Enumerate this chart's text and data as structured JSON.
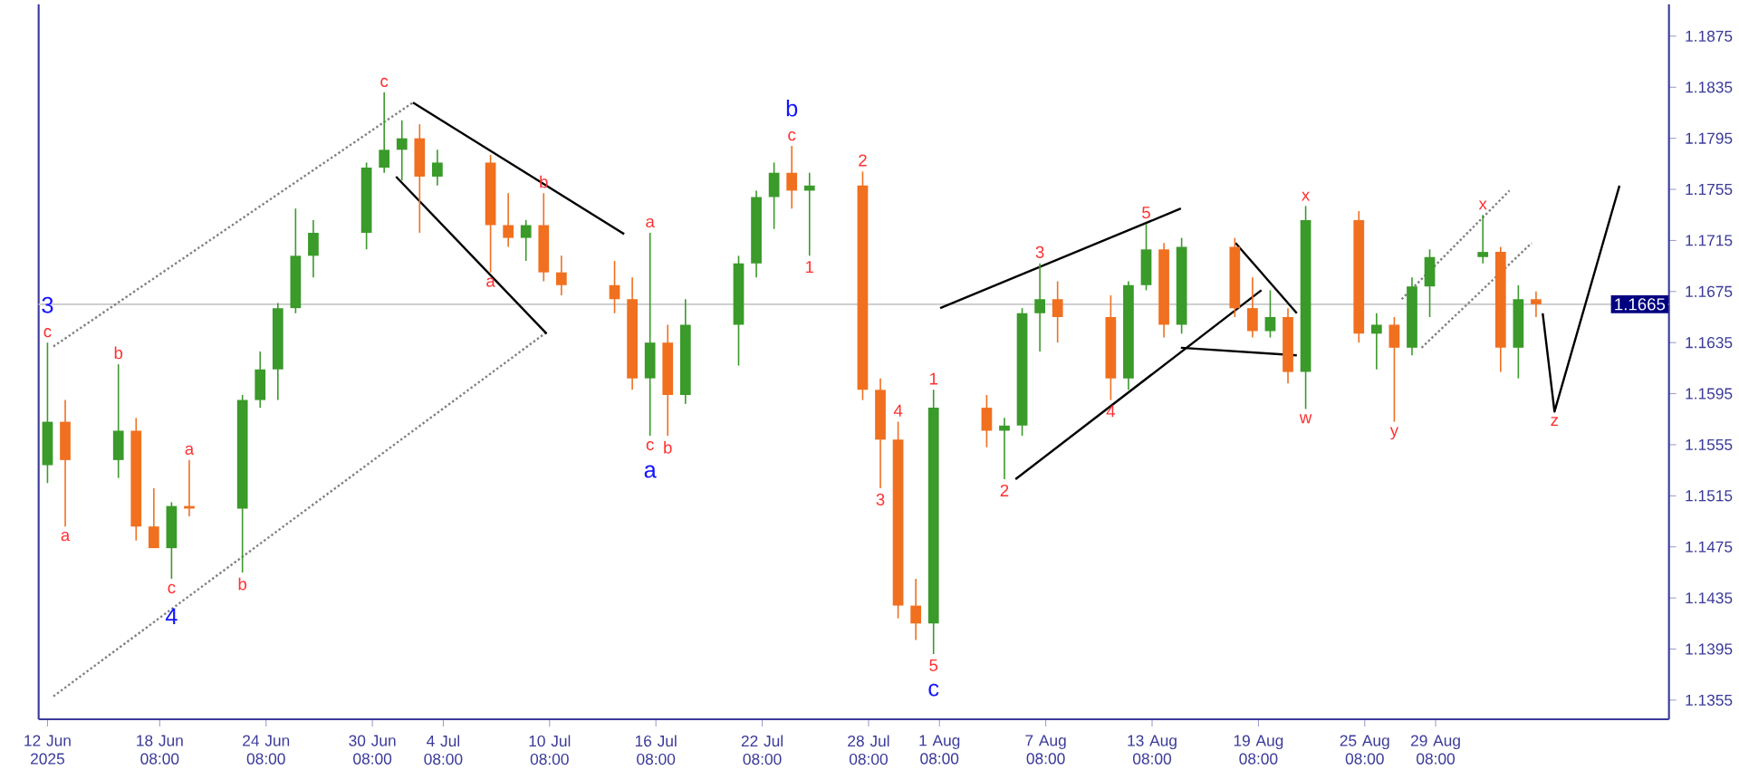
{
  "chart_data": {
    "type": "candlestick",
    "x": [
      "2025-06-12",
      "2025-06-13",
      "2025-06-16",
      "2025-06-17",
      "2025-06-18",
      "2025-06-19",
      "2025-06-20",
      "2025-06-23",
      "2025-06-24",
      "2025-06-25",
      "2025-06-26",
      "2025-06-27",
      "2025-06-30",
      "2025-07-01",
      "2025-07-02",
      "2025-07-03",
      "2025-07-04",
      "2025-07-07",
      "2025-07-08",
      "2025-07-09",
      "2025-07-10",
      "2025-07-11",
      "2025-07-14",
      "2025-07-15",
      "2025-07-16",
      "2025-07-17",
      "2025-07-18",
      "2025-07-21",
      "2025-07-22",
      "2025-07-23",
      "2025-07-24",
      "2025-07-25",
      "2025-07-28",
      "2025-07-29",
      "2025-07-30",
      "2025-07-31",
      "2025-08-01",
      "2025-08-04",
      "2025-08-05",
      "2025-08-06",
      "2025-08-07",
      "2025-08-08",
      "2025-08-11",
      "2025-08-12",
      "2025-08-13",
      "2025-08-14",
      "2025-08-15",
      "2025-08-18",
      "2025-08-19",
      "2025-08-20",
      "2025-08-21",
      "2025-08-22",
      "2025-08-25",
      "2025-08-26",
      "2025-08-27",
      "2025-08-28",
      "2025-08-29",
      "2025-09-01",
      "2025-09-02",
      "2025-09-03",
      "2025-09-04"
    ],
    "ohlc": [
      [
        1.1539,
        1.1635,
        1.1525,
        1.1573
      ],
      [
        1.1573,
        1.159,
        1.1491,
        1.1543
      ],
      [
        1.1543,
        1.1618,
        1.1529,
        1.1566
      ],
      [
        1.1566,
        1.1576,
        1.148,
        1.1491
      ],
      [
        1.1491,
        1.1521,
        1.1474,
        1.1474
      ],
      [
        1.1474,
        1.151,
        1.145,
        1.1507
      ],
      [
        1.1507,
        1.1543,
        1.1499,
        1.1505
      ],
      [
        1.1505,
        1.1594,
        1.1455,
        1.159
      ],
      [
        1.159,
        1.1628,
        1.1584,
        1.1614
      ],
      [
        1.1614,
        1.1666,
        1.159,
        1.1662
      ],
      [
        1.1662,
        1.174,
        1.1658,
        1.1703
      ],
      [
        1.1703,
        1.1731,
        1.1686,
        1.1721
      ],
      [
        1.1721,
        1.1776,
        1.1708,
        1.1772
      ],
      [
        1.1772,
        1.1831,
        1.1768,
        1.1786
      ],
      [
        1.1786,
        1.1809,
        1.1762,
        1.1795
      ],
      [
        1.1795,
        1.1806,
        1.1721,
        1.1765
      ],
      [
        1.1765,
        1.1786,
        1.1758,
        1.1776
      ],
      [
        1.1776,
        1.1782,
        1.169,
        1.1727
      ],
      [
        1.1727,
        1.1752,
        1.171,
        1.1717
      ],
      [
        1.1717,
        1.1731,
        1.1699,
        1.1727
      ],
      [
        1.1727,
        1.1752,
        1.1683,
        1.169
      ],
      [
        1.169,
        1.1703,
        1.1672,
        1.168
      ],
      [
        1.168,
        1.1699,
        1.1658,
        1.1669
      ],
      [
        1.1669,
        1.1686,
        1.1598,
        1.1607
      ],
      [
        1.1607,
        1.1721,
        1.1562,
        1.1635
      ],
      [
        1.1635,
        1.1649,
        1.1562,
        1.1594
      ],
      [
        1.1594,
        1.1669,
        1.1587,
        1.1649
      ],
      [
        1.1649,
        1.1703,
        1.1617,
        1.1697
      ],
      [
        1.1697,
        1.1754,
        1.1686,
        1.1749
      ],
      [
        1.1749,
        1.1776,
        1.1724,
        1.1768
      ],
      [
        1.1768,
        1.1789,
        1.174,
        1.1754
      ],
      [
        1.1754,
        1.1768,
        1.1703,
        1.1758
      ],
      [
        1.1758,
        1.1769,
        1.159,
        1.1598
      ],
      [
        1.1598,
        1.1607,
        1.1521,
        1.1559
      ],
      [
        1.1559,
        1.1573,
        1.1419,
        1.1429
      ],
      [
        1.1429,
        1.145,
        1.1402,
        1.1415
      ],
      [
        1.1415,
        1.1598,
        1.1391,
        1.1584
      ],
      [
        1.1584,
        1.1594,
        1.1553,
        1.1566
      ],
      [
        1.1566,
        1.1576,
        1.1528,
        1.157
      ],
      [
        1.157,
        1.1662,
        1.1562,
        1.1658
      ],
      [
        1.1658,
        1.1697,
        1.1628,
        1.1669
      ],
      [
        1.1669,
        1.1683,
        1.1635,
        1.1655
      ],
      [
        1.1655,
        1.1672,
        1.159,
        1.1607
      ],
      [
        1.1607,
        1.1683,
        1.1598,
        1.168
      ],
      [
        1.168,
        1.1728,
        1.1676,
        1.1708
      ],
      [
        1.1708,
        1.1713,
        1.1639,
        1.1649
      ],
      [
        1.1649,
        1.1717,
        1.1642,
        1.171
      ],
      [
        1.171,
        1.1717,
        1.1655,
        1.1662
      ],
      [
        1.1662,
        1.1686,
        1.1639,
        1.1644
      ],
      [
        1.1644,
        1.1676,
        1.1639,
        1.1655
      ],
      [
        1.1655,
        1.1662,
        1.1603,
        1.1612
      ],
      [
        1.1612,
        1.1742,
        1.1583,
        1.1731
      ],
      [
        1.1731,
        1.1738,
        1.1635,
        1.1642
      ],
      [
        1.1642,
        1.1658,
        1.1614,
        1.1649
      ],
      [
        1.1649,
        1.1655,
        1.1573,
        1.1631
      ],
      [
        1.1631,
        1.1686,
        1.1625,
        1.1679
      ],
      [
        1.1679,
        1.1708,
        1.1655,
        1.1702
      ],
      [
        1.1702,
        1.1735,
        1.1697,
        1.1706
      ],
      [
        1.1706,
        1.171,
        1.1612,
        1.1631
      ],
      [
        1.1631,
        1.168,
        1.1607,
        1.1669
      ],
      [
        1.1669,
        1.1675,
        1.1655,
        1.1665
      ]
    ],
    "colors": [
      "#3a9a2a",
      "#f07020",
      "#3a9a2a",
      "#f07020",
      "#f07020",
      "#3a9a2a",
      "#f07020",
      "#3a9a2a",
      "#3a9a2a",
      "#3a9a2a",
      "#3a9a2a",
      "#3a9a2a",
      "#3a9a2a",
      "#3a9a2a",
      "#3a9a2a",
      "#f07020",
      "#3a9a2a",
      "#f07020",
      "#f07020",
      "#3a9a2a",
      "#f07020",
      "#f07020",
      "#f07020",
      "#f07020",
      "#3a9a2a",
      "#f07020",
      "#3a9a2a",
      "#3a9a2a",
      "#3a9a2a",
      "#3a9a2a",
      "#f07020",
      "#3a9a2a",
      "#f07020",
      "#f07020",
      "#f07020",
      "#f07020",
      "#3a9a2a",
      "#f07020",
      "#3a9a2a",
      "#3a9a2a",
      "#3a9a2a",
      "#f07020",
      "#f07020",
      "#3a9a2a",
      "#3a9a2a",
      "#f07020",
      "#3a9a2a",
      "#f07020",
      "#f07020",
      "#3a9a2a",
      "#f07020",
      "#3a9a2a",
      "#f07020",
      "#3a9a2a",
      "#f07020",
      "#3a9a2a",
      "#3a9a2a",
      "#3a9a2a",
      "#f07020",
      "#3a9a2a",
      "#f07020"
    ],
    "series": [
      {
        "type": "line",
        "x": [
          "2025-06-12T08:00",
          "2025-07-02T15:00"
        ],
        "values": [
          1.1632,
          1.1823
        ],
        "color": "#808080",
        "line_style": "dotted"
      },
      {
        "type": "line",
        "x": [
          "2025-06-12T08:00",
          "2025-07-10T06:00"
        ],
        "values": [
          1.1358,
          1.1644
        ],
        "color": "#808080",
        "line_style": "dotted"
      },
      {
        "type": "line",
        "x": [
          "2025-07-02T15:00",
          "2025-07-14T13:00"
        ],
        "values": [
          1.1823,
          1.172
        ],
        "color": "#000000",
        "line_style": "solid"
      },
      {
        "type": "line",
        "x": [
          "2025-07-01T16:00",
          "2025-07-10T04:00"
        ],
        "values": [
          1.1765,
          1.1642
        ],
        "color": "#000000",
        "line_style": "solid"
      },
      {
        "type": "line",
        "x": [
          "2025-08-01T09:00",
          "2025-08-14T23:00"
        ],
        "values": [
          1.1662,
          1.174
        ],
        "color": "#000000",
        "line_style": "solid"
      },
      {
        "type": "line",
        "x": [
          "2025-08-05T15:00",
          "2025-08-19T12:00"
        ],
        "values": [
          1.1528,
          1.1676
        ],
        "color": "#000000",
        "line_style": "solid"
      },
      {
        "type": "line",
        "x": [
          "2025-08-18T01:00",
          "2025-08-21T12:00"
        ],
        "values": [
          1.1713,
          1.1658
        ],
        "color": "#000000",
        "line_style": "solid"
      },
      {
        "type": "line",
        "x": [
          "2025-08-14T23:00",
          "2025-08-21T12:00"
        ],
        "values": [
          1.1631,
          1.1625
        ],
        "color": "#000000",
        "line_style": "solid"
      },
      {
        "type": "line",
        "x": [
          "2025-08-27T10:00",
          "2025-09-02T12:00"
        ],
        "values": [
          1.1669,
          1.1754
        ],
        "color": "#808080",
        "line_style": "dotted"
      },
      {
        "type": "line",
        "x": [
          "2025-08-28T13:00",
          "2025-09-03T18:00"
        ],
        "values": [
          1.1631,
          1.1713
        ],
        "color": "#808080",
        "line_style": "dotted"
      },
      {
        "type": "line",
        "x": [
          "2025-09-04T09:00",
          "2025-09-05T01:00",
          "2025-09-08T17:00"
        ],
        "values": [
          1.1658,
          1.1581,
          1.1758
        ],
        "color": "#000000",
        "line_style": "solid"
      }
    ],
    "xlim": [
      "2025-06-11T12:00",
      "2025-09-11T12:00"
    ],
    "ylim": [
      1.134,
      1.19
    ],
    "xticks": [
      {
        "value": "2025-06-12",
        "label": "12 Jun 2025"
      },
      {
        "value": "2025-06-18T08:00",
        "label": "18 Jun 08:00"
      },
      {
        "value": "2025-06-24T08:00",
        "label": "24 Jun 08:00"
      },
      {
        "value": "2025-06-30T08:00",
        "label": "30 Jun 08:00"
      },
      {
        "value": "2025-07-04T08:00",
        "label": "4 Jul 08:00"
      },
      {
        "value": "2025-07-10T08:00",
        "label": "10 Jul 08:00"
      },
      {
        "value": "2025-07-16T08:00",
        "label": "16 Jul 08:00"
      },
      {
        "value": "2025-07-22T08:00",
        "label": "22 Jul 08:00"
      },
      {
        "value": "2025-07-28T08:00",
        "label": "28 Jul 08:00"
      },
      {
        "value": "2025-08-01T08:00",
        "label": "1 Aug 08:00"
      },
      {
        "value": "2025-08-07T08:00",
        "label": "7 Aug 08:00"
      },
      {
        "value": "2025-08-13T08:00",
        "label": "13 Aug 08:00"
      },
      {
        "value": "2025-08-19T08:00",
        "label": "19 Aug 08:00"
      },
      {
        "value": "2025-08-25T08:00",
        "label": "25 Aug 08:00"
      },
      {
        "value": "2025-08-29T08:00",
        "label": "29 Aug 08:00"
      }
    ],
    "yticks": [
      1.1355,
      1.1395,
      1.1435,
      1.1475,
      1.1515,
      1.1555,
      1.1595,
      1.1635,
      1.1675,
      1.1715,
      1.1755,
      1.1795,
      1.1835,
      1.1875
    ],
    "ref_lines": [
      {
        "axis": "y",
        "value": 1.1665,
        "label": "1.1665",
        "color": "#c8c8c8"
      }
    ],
    "annotations": [
      {
        "text": "c",
        "x": "2025-06-12",
        "y": 1.1635
      },
      {
        "text": "3",
        "x": "2025-06-12",
        "y": 1.1635
      },
      {
        "text": "a",
        "x": "2025-06-13",
        "y": 1.1491
      },
      {
        "text": "b",
        "x": "2025-06-16",
        "y": 1.1618
      },
      {
        "text": "c",
        "x": "2025-06-19",
        "y": 1.145
      },
      {
        "text": "4",
        "x": "2025-06-19",
        "y": 1.145
      },
      {
        "text": "a",
        "x": "2025-06-20",
        "y": 1.1543
      },
      {
        "text": "b",
        "x": "2025-06-23",
        "y": 1.1455
      },
      {
        "text": "c",
        "x": "2025-07-01",
        "y": 1.1831
      },
      {
        "text": "a",
        "x": "2025-07-07",
        "y": 1.169
      },
      {
        "text": "b",
        "x": "2025-07-10",
        "y": 1.1752
      },
      {
        "text": "a",
        "x": "2025-07-16",
        "y": 1.1721
      },
      {
        "text": "c",
        "x": "2025-07-16",
        "y": 1.1562
      },
      {
        "text": "a",
        "x": "2025-07-16",
        "y": 1.1562
      },
      {
        "text": "b",
        "x": "2025-07-17",
        "y": 1.1562
      },
      {
        "text": "c",
        "x": "2025-07-24",
        "y": 1.1789
      },
      {
        "text": "b",
        "x": "2025-07-24",
        "y": 1.1789
      },
      {
        "text": "1",
        "x": "2025-07-25",
        "y": 1.1703
      },
      {
        "text": "2",
        "x": "2025-07-28",
        "y": 1.1769
      },
      {
        "text": "3",
        "x": "2025-07-29",
        "y": 1.1521
      },
      {
        "text": "4",
        "x": "2025-07-30",
        "y": 1.1573
      },
      {
        "text": "5",
        "x": "2025-08-01",
        "y": 1.1391
      },
      {
        "text": "c",
        "x": "2025-08-01",
        "y": 1.1391
      },
      {
        "text": "1",
        "x": "2025-08-01",
        "y": 1.1598
      },
      {
        "text": "2",
        "x": "2025-08-05",
        "y": 1.1528
      },
      {
        "text": "3",
        "x": "2025-08-07",
        "y": 1.1697
      },
      {
        "text": "4",
        "x": "2025-08-11",
        "y": 1.159
      },
      {
        "text": "5",
        "x": "2025-08-13",
        "y": 1.1728
      },
      {
        "text": "w",
        "x": "2025-08-22",
        "y": 1.1583
      },
      {
        "text": "x",
        "x": "2025-08-22",
        "y": 1.1742
      },
      {
        "text": "y",
        "x": "2025-08-27",
        "y": 1.1573
      },
      {
        "text": "x",
        "x": "2025-09-01",
        "y": 1.1735
      },
      {
        "text": "z",
        "x": "2025-09-05T01:00",
        "y": 1.1581
      }
    ]
  }
}
